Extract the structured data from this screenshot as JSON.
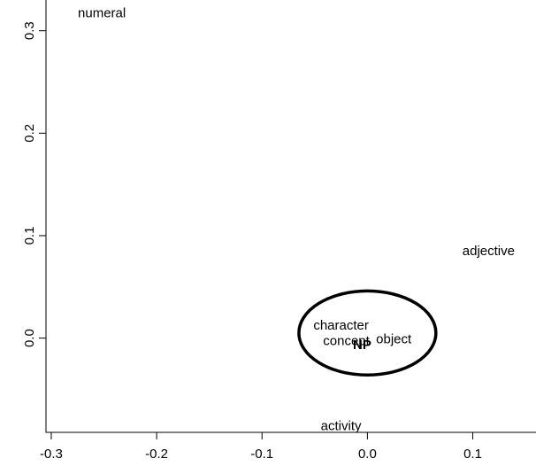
{
  "chart_data": {
    "type": "scatter",
    "title": "",
    "xlabel": "",
    "ylabel": "",
    "xlim": [
      -0.305,
      0.16
    ],
    "ylim": [
      -0.092,
      0.33
    ],
    "x_ticks": [
      {
        "value": -0.3,
        "label": "-0.3"
      },
      {
        "value": -0.2,
        "label": "-0.2"
      },
      {
        "value": -0.1,
        "label": "-0.1"
      },
      {
        "value": 0.0,
        "label": "0.0"
      },
      {
        "value": 0.1,
        "label": "0.1"
      }
    ],
    "y_ticks": [
      {
        "value": 0.0,
        "label": "0.0"
      },
      {
        "value": 0.1,
        "label": "0.1"
      },
      {
        "value": 0.2,
        "label": "0.2"
      },
      {
        "value": 0.3,
        "label": "0.3"
      }
    ],
    "grid": false,
    "points": [
      {
        "label": "numeral",
        "x": -0.252,
        "y": 0.317,
        "bold": false
      },
      {
        "label": "adjective",
        "x": 0.115,
        "y": 0.085,
        "bold": false
      },
      {
        "label": "character",
        "x": -0.025,
        "y": 0.012,
        "bold": false
      },
      {
        "label": "concept",
        "x": -0.02,
        "y": -0.003,
        "bold": false
      },
      {
        "label": "object",
        "x": 0.025,
        "y": -0.001,
        "bold": false
      },
      {
        "label": "NP",
        "x": -0.005,
        "y": -0.007,
        "bold": true
      },
      {
        "label": "activity",
        "x": -0.025,
        "y": -0.086,
        "bold": false
      }
    ],
    "ellipse": {
      "cx": 0.0,
      "cy": 0.005,
      "rx": 0.065,
      "ry": 0.041
    }
  }
}
